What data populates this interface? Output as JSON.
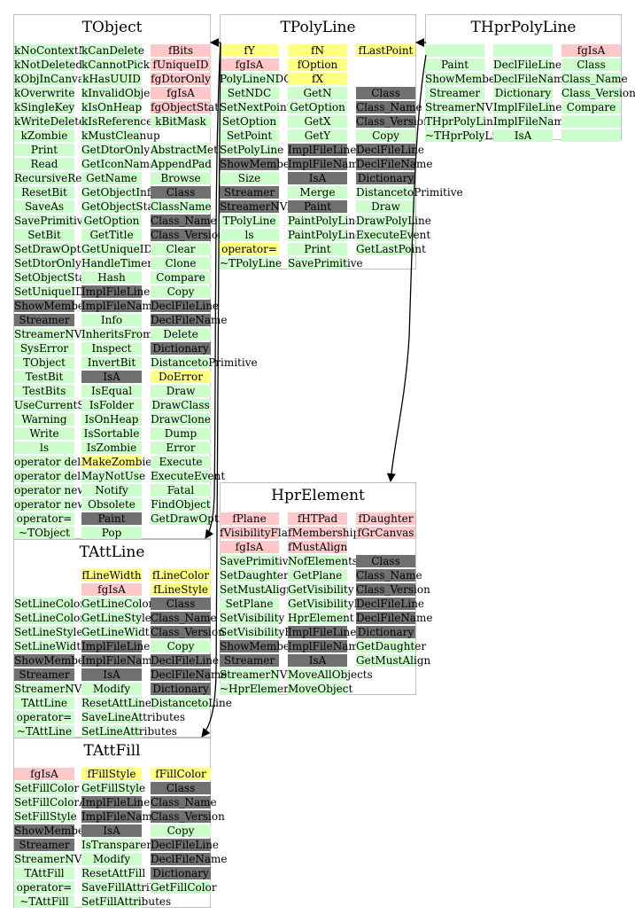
{
  "colors": {
    "public": "#ccffcc",
    "protected": "#ffc8c8",
    "data_member": "#ffff80",
    "external": "#707070",
    "border": "#c0c0c0",
    "edge": "#000000"
  },
  "classes": [
    {
      "id": "tobject",
      "title": "TObject",
      "cols": [
        [
          [
            "kNoContextMenu",
            "g"
          ],
          [
            "kNotDeleted",
            "g"
          ],
          [
            "kObjInCanvas",
            "g"
          ],
          [
            "kOverwrite",
            "g"
          ],
          [
            "kSingleKey",
            "g"
          ],
          [
            "kWriteDelete",
            "g"
          ],
          [
            "kZombie",
            "g"
          ],
          [
            "Print",
            "g"
          ],
          [
            "Read",
            "g"
          ],
          [
            "RecursiveRemove",
            "g"
          ],
          [
            "ResetBit",
            "g"
          ],
          [
            "SaveAs",
            "g"
          ],
          [
            "SavePrimitive",
            "g"
          ],
          [
            "SetBit",
            "g"
          ],
          [
            "SetDrawOption",
            "g"
          ],
          [
            "SetDtorOnly",
            "g"
          ],
          [
            "SetObjectStat",
            "g"
          ],
          [
            "SetUniqueID",
            "g"
          ],
          [
            "ShowMembers",
            "d"
          ],
          [
            "Streamer",
            "d"
          ],
          [
            "StreamerNVirtual",
            "g"
          ],
          [
            "SysError",
            "g"
          ],
          [
            "TObject",
            "g"
          ],
          [
            "TestBit",
            "g"
          ],
          [
            "TestBits",
            "g"
          ],
          [
            "UseCurrentStyle",
            "g"
          ],
          [
            "Warning",
            "g"
          ],
          [
            "Write",
            "g"
          ],
          [
            "ls",
            "g"
          ],
          [
            "operator delete",
            "g"
          ],
          [
            "operator delete[]",
            "g"
          ],
          [
            "operator new",
            "g"
          ],
          [
            "operator new[]",
            "g"
          ],
          [
            "operator=",
            "g"
          ],
          [
            "~TObject",
            "g"
          ]
        ],
        [
          [
            "kCanDelete",
            "g"
          ],
          [
            "kCannotPick",
            "g"
          ],
          [
            "kHasUUID",
            "g"
          ],
          [
            "kInvalidObject",
            "g"
          ],
          [
            "kIsOnHeap",
            "g"
          ],
          [
            "kIsReferenced",
            "g"
          ],
          [
            "kMustCleanup",
            "g"
          ],
          [
            "GetDtorOnly",
            "g"
          ],
          [
            "GetIconName",
            "g"
          ],
          [
            "GetName",
            "g"
          ],
          [
            "GetObjectInfo",
            "g"
          ],
          [
            "GetObjectStat",
            "g"
          ],
          [
            "GetOption",
            "g"
          ],
          [
            "GetTitle",
            "g"
          ],
          [
            "GetUniqueID",
            "g"
          ],
          [
            "HandleTimer",
            "g"
          ],
          [
            "Hash",
            "g"
          ],
          [
            "ImplFileLine",
            "d"
          ],
          [
            "ImplFileName",
            "d"
          ],
          [
            "Info",
            "g"
          ],
          [
            "InheritsFrom",
            "g"
          ],
          [
            "Inspect",
            "g"
          ],
          [
            "InvertBit",
            "g"
          ],
          [
            "IsA",
            "d"
          ],
          [
            "IsEqual",
            "g"
          ],
          [
            "IsFolder",
            "g"
          ],
          [
            "IsOnHeap",
            "g"
          ],
          [
            "IsSortable",
            "g"
          ],
          [
            "IsZombie",
            "g"
          ],
          [
            "MakeZombie",
            "y"
          ],
          [
            "MayNotUse",
            "g"
          ],
          [
            "Notify",
            "g"
          ],
          [
            "Obsolete",
            "g"
          ],
          [
            "Paint",
            "d"
          ],
          [
            "Pop",
            "g"
          ]
        ],
        [
          [
            "fBits",
            "p"
          ],
          [
            "fUniqueID",
            "p"
          ],
          [
            "fgDtorOnly",
            "p"
          ],
          [
            "fgIsA",
            "p"
          ],
          [
            "fgObjectStat",
            "p"
          ],
          [
            "kBitMask",
            "g"
          ],
          [
            "",
            "g"
          ],
          [
            "AbstractMethod",
            "g"
          ],
          [
            "AppendPad",
            "g"
          ],
          [
            "Browse",
            "g"
          ],
          [
            "Class",
            "d"
          ],
          [
            "ClassName",
            "g"
          ],
          [
            "Class_Name",
            "d"
          ],
          [
            "Class_Version",
            "d"
          ],
          [
            "Clear",
            "g"
          ],
          [
            "Clone",
            "g"
          ],
          [
            "Compare",
            "g"
          ],
          [
            "Copy",
            "g"
          ],
          [
            "DeclFileLine",
            "d"
          ],
          [
            "DeclFileName",
            "d"
          ],
          [
            "Delete",
            "g"
          ],
          [
            "Dictionary",
            "d"
          ],
          [
            "DistancetoPrimitive",
            "g"
          ],
          [
            "DoError",
            "y"
          ],
          [
            "Draw",
            "g"
          ],
          [
            "DrawClass",
            "g"
          ],
          [
            "DrawClone",
            "g"
          ],
          [
            "Dump",
            "g"
          ],
          [
            "Error",
            "g"
          ],
          [
            "Execute",
            "g"
          ],
          [
            "ExecuteEvent",
            "g"
          ],
          [
            "Fatal",
            "g"
          ],
          [
            "FindObject",
            "g"
          ],
          [
            "GetDrawOption",
            "g"
          ],
          [
            "",
            "g"
          ]
        ]
      ]
    },
    {
      "id": "tpolyline",
      "title": "TPolyLine",
      "cols": [
        [
          [
            "fY",
            "y"
          ],
          [
            "fgIsA",
            "p"
          ],
          [
            "PolyLineNDC",
            "g"
          ],
          [
            "SetNDC",
            "g"
          ],
          [
            "SetNextPoint",
            "g"
          ],
          [
            "SetOption",
            "g"
          ],
          [
            "SetPoint",
            "g"
          ],
          [
            "SetPolyLine",
            "g"
          ],
          [
            "ShowMembers",
            "d"
          ],
          [
            "Size",
            "g"
          ],
          [
            "Streamer",
            "d"
          ],
          [
            "StreamerNVirtual",
            "d"
          ],
          [
            "TPolyLine",
            "g"
          ],
          [
            "ls",
            "g"
          ],
          [
            "operator=",
            "y"
          ],
          [
            "~TPolyLine",
            "g"
          ]
        ],
        [
          [
            "fN",
            "y"
          ],
          [
            "fOption",
            "y"
          ],
          [
            "fX",
            "y"
          ],
          [
            "GetN",
            "g"
          ],
          [
            "GetOption",
            "g"
          ],
          [
            "GetX",
            "g"
          ],
          [
            "GetY",
            "g"
          ],
          [
            "ImplFileLine",
            "d"
          ],
          [
            "ImplFileName",
            "d"
          ],
          [
            "IsA",
            "d"
          ],
          [
            "Merge",
            "g"
          ],
          [
            "Paint",
            "d"
          ],
          [
            "PaintPolyLine",
            "g"
          ],
          [
            "PaintPolyLineNDC",
            "g"
          ],
          [
            "Print",
            "g"
          ],
          [
            "SavePrimitive",
            "g"
          ]
        ],
        [
          [
            "fLastPoint",
            "y"
          ],
          [
            "",
            "g"
          ],
          [
            "",
            "g"
          ],
          [
            "Class",
            "d"
          ],
          [
            "Class_Name",
            "d"
          ],
          [
            "Class_Version",
            "d"
          ],
          [
            "Copy",
            "g"
          ],
          [
            "DeclFileLine",
            "d"
          ],
          [
            "DeclFileName",
            "d"
          ],
          [
            "Dictionary",
            "d"
          ],
          [
            "DistancetoPrimitive",
            "g"
          ],
          [
            "Draw",
            "g"
          ],
          [
            "DrawPolyLine",
            "g"
          ],
          [
            "ExecuteEvent",
            "g"
          ],
          [
            "GetLastPoint",
            "g"
          ],
          [
            "",
            "g"
          ]
        ]
      ]
    },
    {
      "id": "thprpolyline",
      "title": "THprPolyLine",
      "cols": [
        [
          [
            "",
            "g"
          ],
          [
            "Paint",
            "g"
          ],
          [
            "ShowMembers",
            "g"
          ],
          [
            "Streamer",
            "g"
          ],
          [
            "StreamerNVirtual",
            "g"
          ],
          [
            "THprPolyLine",
            "g"
          ],
          [
            "~THprPolyLine",
            "g"
          ]
        ],
        [
          [
            "",
            "g"
          ],
          [
            "DeclFileLine",
            "g"
          ],
          [
            "DeclFileName",
            "g"
          ],
          [
            "Dictionary",
            "g"
          ],
          [
            "ImplFileLine",
            "g"
          ],
          [
            "ImplFileName",
            "g"
          ],
          [
            "IsA",
            "g"
          ]
        ],
        [
          [
            "fgIsA",
            "p"
          ],
          [
            "Class",
            "g"
          ],
          [
            "Class_Name",
            "g"
          ],
          [
            "Class_Version",
            "g"
          ],
          [
            "Compare",
            "g"
          ],
          [
            "",
            "g"
          ],
          [
            "",
            "g"
          ]
        ]
      ]
    },
    {
      "id": "hprelement",
      "title": "HprElement",
      "cols": [
        [
          [
            "fPlane",
            "p"
          ],
          [
            "fVisibilityFlag",
            "p"
          ],
          [
            "fgIsA",
            "p"
          ],
          [
            "SavePrimitive",
            "g"
          ],
          [
            "SetDaughter",
            "g"
          ],
          [
            "SetMustAlign",
            "g"
          ],
          [
            "SetPlane",
            "g"
          ],
          [
            "SetVisibility",
            "g"
          ],
          [
            "SetVisibilityFlag",
            "g"
          ],
          [
            "ShowMembers",
            "d"
          ],
          [
            "Streamer",
            "d"
          ],
          [
            "StreamerNVirtual",
            "g"
          ],
          [
            "~HprElement",
            "g"
          ]
        ],
        [
          [
            "fHTPad",
            "p"
          ],
          [
            "fMemberships",
            "p"
          ],
          [
            "fMustAlign",
            "p"
          ],
          [
            "NofElementsInPlane",
            "g"
          ],
          [
            "GetPlane",
            "g"
          ],
          [
            "GetVisibility",
            "g"
          ],
          [
            "GetVisibilityFlag",
            "g"
          ],
          [
            "HprElement",
            "g"
          ],
          [
            "ImplFileLine",
            "d"
          ],
          [
            "ImplFileName",
            "d"
          ],
          [
            "IsA",
            "d"
          ],
          [
            "MoveAllObjects",
            "g"
          ],
          [
            "MoveObject",
            "g"
          ]
        ],
        [
          [
            "fDaughter",
            "p"
          ],
          [
            "fGrCanvas",
            "p"
          ],
          [
            "",
            "g"
          ],
          [
            "Class",
            "d"
          ],
          [
            "Class_Name",
            "d"
          ],
          [
            "Class_Version",
            "d"
          ],
          [
            "DeclFileLine",
            "d"
          ],
          [
            "DeclFileName",
            "d"
          ],
          [
            "Dictionary",
            "d"
          ],
          [
            "GetDaughter",
            "g"
          ],
          [
            "GetMustAlign",
            "g"
          ],
          [
            "",
            "g"
          ],
          [
            "",
            "g"
          ]
        ]
      ]
    },
    {
      "id": "tattline",
      "title": "TAttLine",
      "cols": [
        [
          [
            "",
            "g"
          ],
          [
            "",
            "g"
          ],
          [
            "SetLineColor",
            "g"
          ],
          [
            "SetLineColorAlpha",
            "g"
          ],
          [
            "SetLineStyle",
            "g"
          ],
          [
            "SetLineWidth",
            "g"
          ],
          [
            "ShowMembers",
            "d"
          ],
          [
            "Streamer",
            "d"
          ],
          [
            "StreamerNVirtual",
            "g"
          ],
          [
            "TAttLine",
            "g"
          ],
          [
            "operator=",
            "g"
          ],
          [
            "~TAttLine",
            "g"
          ]
        ],
        [
          [
            "fLineWidth",
            "y"
          ],
          [
            "fgIsA",
            "p"
          ],
          [
            "GetLineColor",
            "g"
          ],
          [
            "GetLineStyle",
            "g"
          ],
          [
            "GetLineWidth",
            "g"
          ],
          [
            "ImplFileLine",
            "d"
          ],
          [
            "ImplFileName",
            "d"
          ],
          [
            "IsA",
            "d"
          ],
          [
            "Modify",
            "g"
          ],
          [
            "ResetAttLine",
            "g"
          ],
          [
            "SaveLineAttributes",
            "g"
          ],
          [
            "SetLineAttributes",
            "g"
          ]
        ],
        [
          [
            "fLineColor",
            "y"
          ],
          [
            "fLineStyle",
            "y"
          ],
          [
            "Class",
            "d"
          ],
          [
            "Class_Name",
            "d"
          ],
          [
            "Class_Version",
            "d"
          ],
          [
            "Copy",
            "g"
          ],
          [
            "DeclFileLine",
            "d"
          ],
          [
            "DeclFileName",
            "d"
          ],
          [
            "Dictionary",
            "d"
          ],
          [
            "DistancetoLine",
            "g"
          ],
          [
            "",
            "g"
          ],
          [
            "",
            "g"
          ]
        ]
      ]
    },
    {
      "id": "tattfill",
      "title": "TAttFill",
      "cols": [
        [
          [
            "fgIsA",
            "p"
          ],
          [
            "SetFillColor",
            "g"
          ],
          [
            "SetFillColorAlpha",
            "g"
          ],
          [
            "SetFillStyle",
            "g"
          ],
          [
            "ShowMembers",
            "d"
          ],
          [
            "Streamer",
            "d"
          ],
          [
            "StreamerNVirtual",
            "g"
          ],
          [
            "TAttFill",
            "g"
          ],
          [
            "operator=",
            "g"
          ],
          [
            "~TAttFill",
            "g"
          ]
        ],
        [
          [
            "fFillStyle",
            "y"
          ],
          [
            "GetFillStyle",
            "g"
          ],
          [
            "ImplFileLine",
            "d"
          ],
          [
            "ImplFileName",
            "d"
          ],
          [
            "IsA",
            "d"
          ],
          [
            "IsTransparent",
            "g"
          ],
          [
            "Modify",
            "g"
          ],
          [
            "ResetAttFill",
            "g"
          ],
          [
            "SaveFillAttributes",
            "g"
          ],
          [
            "SetFillAttributes",
            "g"
          ]
        ],
        [
          [
            "fFillColor",
            "y"
          ],
          [
            "Class",
            "d"
          ],
          [
            "Class_Name",
            "d"
          ],
          [
            "Class_Version",
            "d"
          ],
          [
            "Copy",
            "g"
          ],
          [
            "DeclFileLine",
            "d"
          ],
          [
            "DeclFileName",
            "d"
          ],
          [
            "Dictionary",
            "d"
          ],
          [
            "GetFillColor",
            "g"
          ],
          [
            "",
            "g"
          ]
        ]
      ]
    }
  ]
}
